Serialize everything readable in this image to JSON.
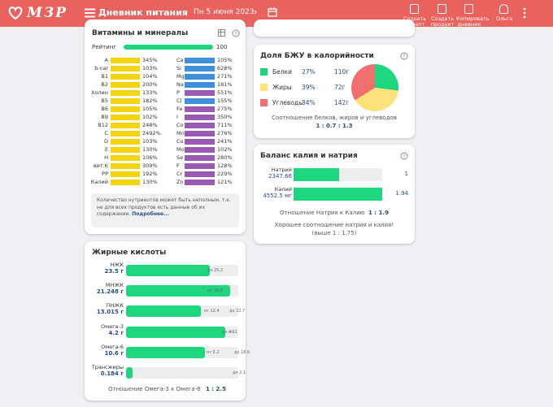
{
  "header": {
    "logo": "МЗР",
    "title": "Дневник питания",
    "date": "Пн 5 июня 2023",
    "actions": [
      "Создать рецепт",
      "Создать продукт",
      "Копировать дневник",
      "Ольга"
    ]
  },
  "vitamins": {
    "title": "Витамины и минералы",
    "rating_label": "Рейтинг",
    "rating": "100",
    "left": [
      {
        "name": "A",
        "percent": "345%"
      },
      {
        "name": "b-car",
        "percent": "103%"
      },
      {
        "name": "B1",
        "percent": "104%"
      },
      {
        "name": "B2",
        "percent": "200%"
      },
      {
        "name": "Холин",
        "percent": "133%"
      },
      {
        "name": "B5",
        "percent": "182%"
      },
      {
        "name": "B6",
        "percent": "105%"
      },
      {
        "name": "B9",
        "percent": "102%"
      },
      {
        "name": "B12",
        "percent": "248%"
      },
      {
        "name": "C",
        "percent": "2492%"
      },
      {
        "name": "D",
        "percent": "103%"
      },
      {
        "name": "E",
        "percent": "130%"
      },
      {
        "name": "H",
        "percent": "106%"
      },
      {
        "name": "вит.K",
        "percent": "309%"
      },
      {
        "name": "PP",
        "percent": "192%"
      },
      {
        "name": "Калий",
        "percent": "130%"
      }
    ],
    "left_color": "#f2d50f",
    "right": [
      {
        "name": "Ca",
        "percent": "105%",
        "color": "#3d8fdc"
      },
      {
        "name": "Si",
        "percent": "628%",
        "color": "#3d8fdc"
      },
      {
        "name": "Mg",
        "percent": "271%",
        "color": "#3d8fdc"
      },
      {
        "name": "Na",
        "percent": "181%",
        "color": "#3d8fdc"
      },
      {
        "name": "P",
        "percent": "551%",
        "color": "#9b59b6"
      },
      {
        "name": "Cl",
        "percent": "155%",
        "color": "#3d8fdc"
      },
      {
        "name": "Fe",
        "percent": "275%",
        "color": "#9b59b6"
      },
      {
        "name": "I",
        "percent": "350%",
        "color": "#9b59b6"
      },
      {
        "name": "Co",
        "percent": "711%",
        "color": "#9b59b6"
      },
      {
        "name": "Mn",
        "percent": "276%",
        "color": "#9b59b6"
      },
      {
        "name": "Cu",
        "percent": "241%",
        "color": "#9b59b6"
      },
      {
        "name": "Mo",
        "percent": "102%",
        "color": "#9b59b6"
      },
      {
        "name": "Se",
        "percent": "280%",
        "color": "#9b59b6"
      },
      {
        "name": "F",
        "percent": "128%",
        "color": "#9b59b6"
      },
      {
        "name": "Cr",
        "percent": "229%",
        "color": "#9b59b6"
      },
      {
        "name": "Zn",
        "percent": "121%",
        "color": "#9b59b6"
      }
    ],
    "note": "Количество нутриентов может быть неполным, т.к. не для всех продуктов есть данные об их содержании.",
    "note_link": "Подробнее..."
  },
  "fatty_acids": {
    "title": "Жирные кислоты",
    "rows": [
      {
        "name": "НЖК",
        "amount": "23.5 г",
        "to": "до 25.2"
      },
      {
        "name": "МНЖК",
        "amount": "21.248 г",
        "from": "от 18.6"
      },
      {
        "name": "ПНЖК",
        "amount": "13.015 г",
        "from": "от 12.4",
        "to": "до 22.7"
      },
      {
        "name": "Омега-3",
        "amount": "4.2 г",
        "from": "от 1",
        "to": "до 4.1"
      },
      {
        "name": "Омега-6",
        "amount": "10.6 г",
        "from": "от 5.2",
        "to": "до 18.6"
      },
      {
        "name": "Трансжиры",
        "amount": "0.184 г",
        "to": "до 2.1"
      }
    ],
    "ratio_label": "Отношение Омега-3 к Омега-6",
    "ratio": "1 : 2.5"
  },
  "bju": {
    "title": "Доля БЖУ в калорийности",
    "items": [
      {
        "name": "Белки",
        "percent": 27,
        "percent_label": "27%",
        "grams": "110г",
        "color": "#1fd67f"
      },
      {
        "name": "Жиры",
        "percent": 39,
        "percent_label": "39%",
        "grams": "72г",
        "color": "#fde17a"
      },
      {
        "name": "Углеводы",
        "percent": 34,
        "percent_label": "34%",
        "grams": "142г",
        "color": "#f06e6e"
      }
    ],
    "caption": "Соотношение белков, жиров и углеводов",
    "ratio": "1 : 0.7 : 1.3"
  },
  "balance": {
    "title": "Баланс калия и натрия",
    "rows": [
      {
        "name": "Натрий",
        "amount": "2347.66",
        "ratio": 1
      },
      {
        "name": "Калий",
        "amount": "4552.5 мг",
        "ratio": 1.94
      }
    ],
    "ratio_label": "Отношение Натрия к Калию",
    "ratio": "1 : 1.9",
    "note": "Хорошее соотношение натрия и калия! (выше 1 : 1,75)"
  }
}
